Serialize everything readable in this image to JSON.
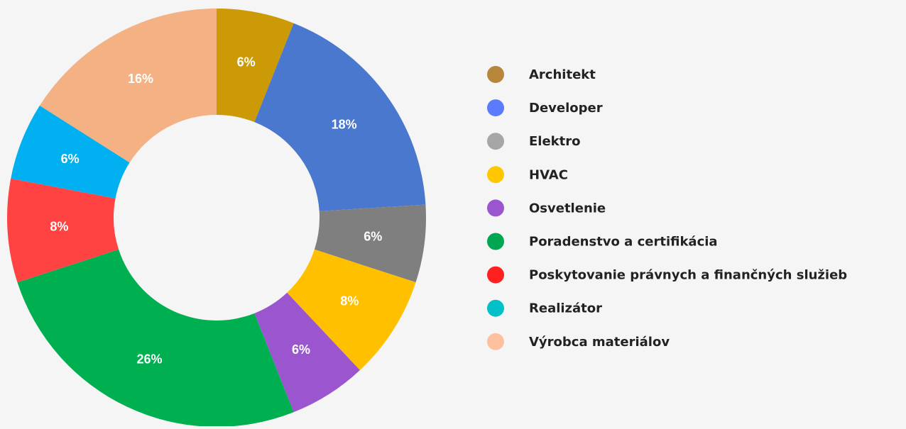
{
  "chart_data": {
    "type": "donut",
    "categories": [
      "Architekt",
      "Developer",
      "Elektro",
      "HVAC",
      "Osvetlenie",
      "Poradenstvo a certifikácia",
      "Poskytovanie právnych a finančných služieb",
      "Realizátor",
      "Výrobca materiálov"
    ],
    "values": [
      6,
      18,
      6,
      8,
      6,
      26,
      8,
      6,
      16
    ],
    "value_labels": [
      "6%",
      "18%",
      "6%",
      "8%",
      "6%",
      "26%",
      "8%",
      "6%",
      "16%"
    ],
    "colors": [
      "#cc9a06",
      "#4a78cf",
      "#7f7f7f",
      "#ffc000",
      "#9b55cf",
      "#00b050",
      "#ff4343",
      "#00b0f0",
      "#f4b183"
    ],
    "legend_colors": [
      "#b8863b",
      "#5b7cfa",
      "#a6a6a6",
      "#ffc700",
      "#9b55cf",
      "#00a651",
      "#ff2020",
      "#00c0c8",
      "#ffc0a0"
    ],
    "legend": "right"
  }
}
